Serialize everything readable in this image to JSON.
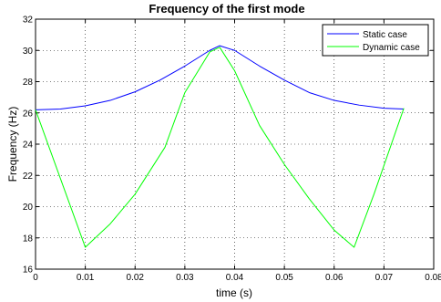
{
  "chart_data": {
    "type": "line",
    "title": "Frequency of the first mode",
    "xlabel": "time (s)",
    "ylabel": "Frequency (Hz)",
    "xlim": [
      0,
      0.08
    ],
    "ylim": [
      16,
      32
    ],
    "xticks": [
      0,
      0.01,
      0.02,
      0.03,
      0.04,
      0.05,
      0.06,
      0.07,
      0.08
    ],
    "xtick_labels": [
      "0",
      "0.01",
      "0.02",
      "0.03",
      "0.04",
      "0.05",
      "0.06",
      "0.07",
      "0.08"
    ],
    "yticks": [
      16,
      18,
      20,
      22,
      24,
      26,
      28,
      30,
      32
    ],
    "ytick_labels": [
      "16",
      "18",
      "20",
      "22",
      "24",
      "26",
      "28",
      "30",
      "32"
    ],
    "grid": true,
    "grid_style": "dotted",
    "legend_position": "top-right",
    "series": [
      {
        "name": "Static case",
        "color": "#0000ff",
        "x": [
          0,
          0.005,
          0.01,
          0.015,
          0.02,
          0.025,
          0.03,
          0.035,
          0.037,
          0.04,
          0.045,
          0.05,
          0.055,
          0.06,
          0.065,
          0.07,
          0.074
        ],
        "y": [
          26.2,
          26.25,
          26.45,
          26.8,
          27.35,
          28.1,
          29.0,
          30.0,
          30.3,
          30.0,
          29.0,
          28.1,
          27.3,
          26.8,
          26.5,
          26.3,
          26.25
        ]
      },
      {
        "name": "Dynamic case",
        "color": "#00ff00",
        "x": [
          0,
          0.005,
          0.01,
          0.015,
          0.02,
          0.026,
          0.03,
          0.035,
          0.037,
          0.04,
          0.045,
          0.05,
          0.055,
          0.06,
          0.064,
          0.068,
          0.074
        ],
        "y": [
          26.2,
          21.8,
          17.4,
          18.9,
          20.8,
          23.8,
          27.3,
          29.9,
          30.2,
          28.7,
          25.2,
          22.7,
          20.5,
          18.5,
          17.4,
          20.8,
          26.3
        ]
      }
    ]
  }
}
